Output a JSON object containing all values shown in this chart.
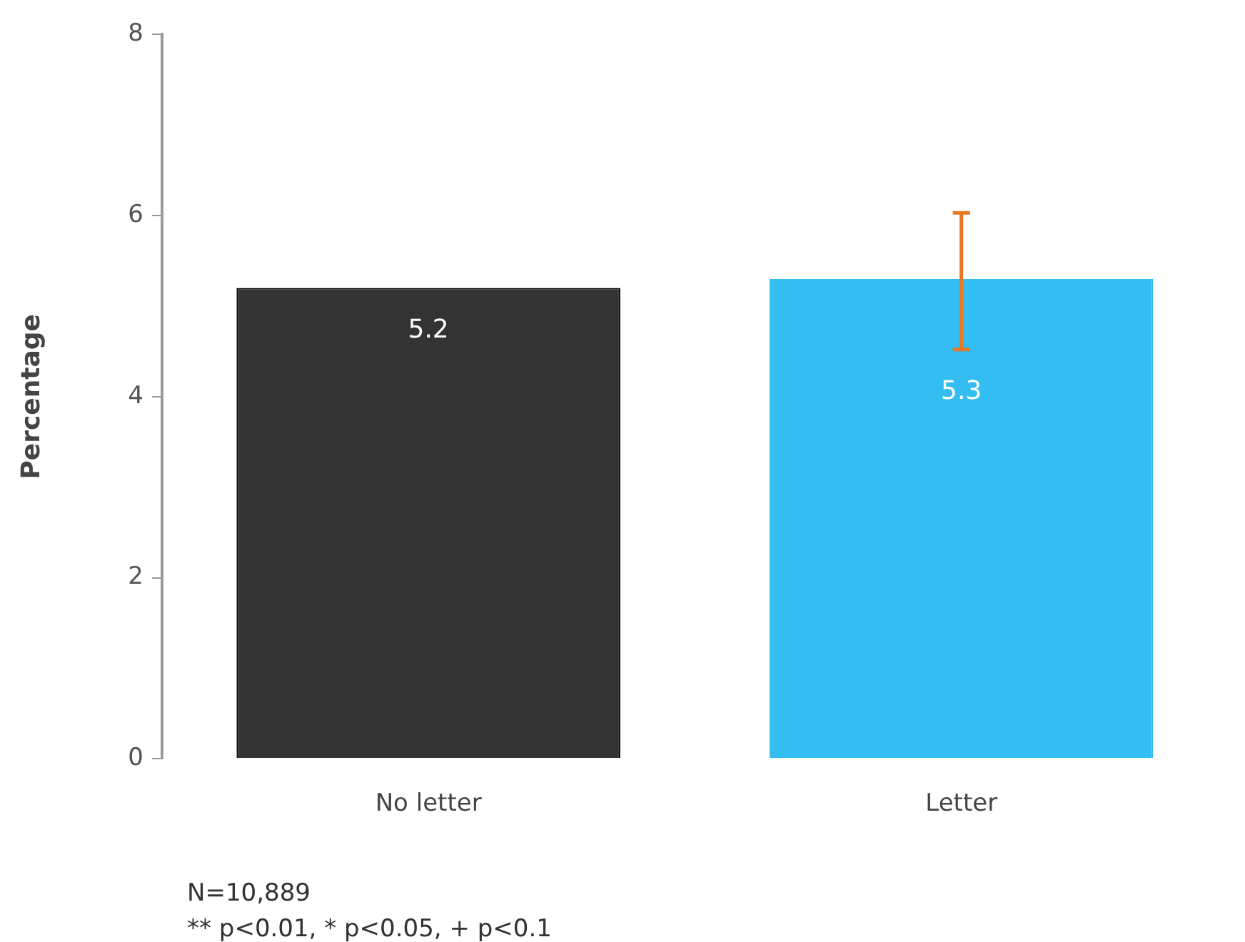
{
  "chart_data": {
    "type": "bar",
    "ylabel": "Percentage",
    "categories": [
      "No letter",
      "Letter"
    ],
    "values": [
      5.2,
      5.3
    ],
    "colors": [
      "#333333",
      "#33bdf0"
    ],
    "errors": [
      null,
      [
        4.52,
        6.03
      ]
    ],
    "ylim": [
      0,
      8
    ],
    "yticks": [
      0,
      2,
      4,
      6,
      8
    ],
    "grid": false,
    "legend": false,
    "data_labels": true,
    "annotations": [
      "N=10,889",
      "** p<0.01, * p<0.05, + p<0.1"
    ]
  }
}
